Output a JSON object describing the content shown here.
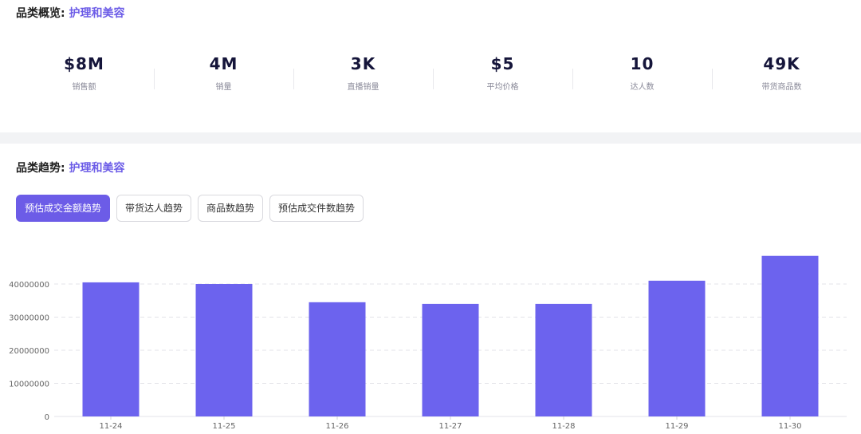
{
  "overview": {
    "title_prefix": "品类概览:",
    "category": "护理和美容",
    "stats": [
      {
        "value": "$8M",
        "label": "销售额"
      },
      {
        "value": "4M",
        "label": "销量"
      },
      {
        "value": "3K",
        "label": "直播销量"
      },
      {
        "value": "$5",
        "label": "平均价格"
      },
      {
        "value": "10",
        "label": "达人数"
      },
      {
        "value": "49K",
        "label": "带货商品数"
      }
    ]
  },
  "trend": {
    "title_prefix": "品类趋势:",
    "category": "护理和美容",
    "tabs": [
      {
        "label": "预估成交金额趋势",
        "active": true
      },
      {
        "label": "带货达人趋势",
        "active": false
      },
      {
        "label": "商品数趋势",
        "active": false
      },
      {
        "label": "预估成交件数趋势",
        "active": false
      }
    ]
  },
  "colors": {
    "accent": "#6c5ce7",
    "bar": "#6c63ee"
  },
  "chart_data": {
    "type": "bar",
    "categories": [
      "11-24",
      "11-25",
      "11-26",
      "11-27",
      "11-28",
      "11-29",
      "11-30"
    ],
    "values": [
      40500000,
      40000000,
      34500000,
      34000000,
      34000000,
      41000000,
      48500000
    ],
    "yticks": [
      "0",
      "10000000",
      "20000000",
      "30000000",
      "40000000"
    ],
    "ylim": [
      0,
      50000000
    ],
    "grid": true,
    "title": "",
    "xlabel": "",
    "ylabel": ""
  }
}
